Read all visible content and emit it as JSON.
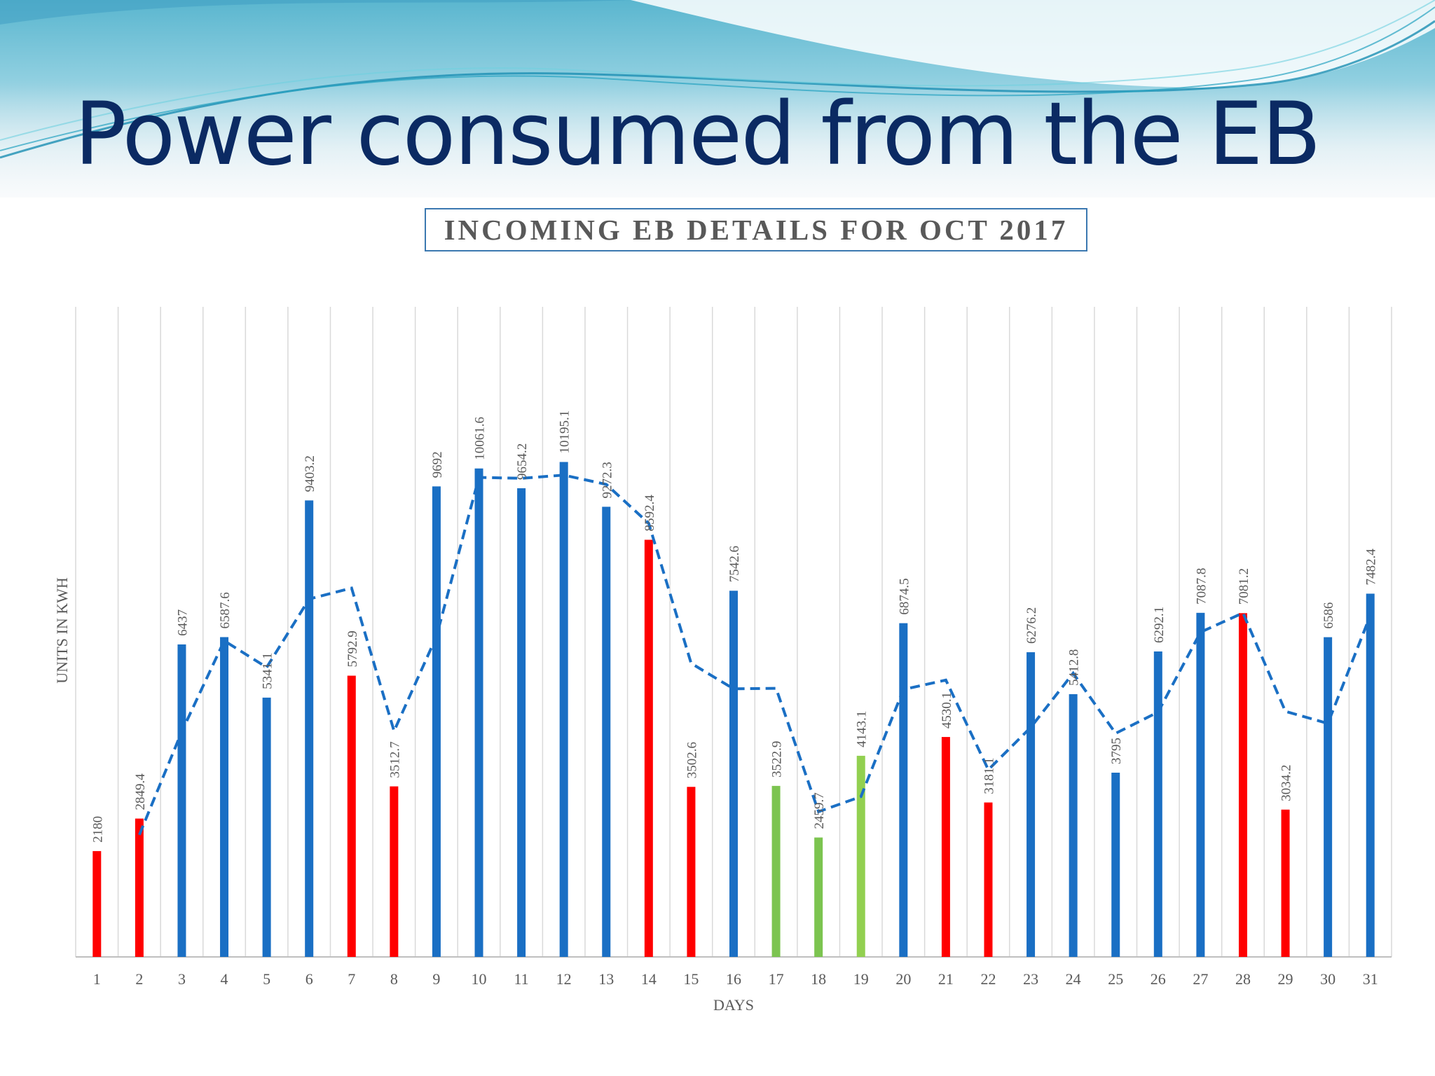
{
  "slide_title": "Power consumed from the EB",
  "chart_data": {
    "type": "bar",
    "title": "INCOMING EB DETAILS FOR OCT 2017",
    "xlabel": "DAYS",
    "ylabel": "UNITS IN KWH",
    "categories": [
      "1",
      "2",
      "3",
      "4",
      "5",
      "6",
      "7",
      "8",
      "9",
      "10",
      "11",
      "12",
      "13",
      "14",
      "15",
      "16",
      "17",
      "18",
      "19",
      "20",
      "21",
      "22",
      "23",
      "24",
      "25",
      "26",
      "27",
      "28",
      "29",
      "30",
      "31"
    ],
    "values": [
      2180,
      2849.4,
      6437,
      6587.6,
      5341.1,
      9403.2,
      5792.9,
      3512.7,
      9692,
      10061.6,
      9654.2,
      10195.1,
      9272.3,
      8592.4,
      3502.6,
      7542.6,
      3522.9,
      2459.7,
      4143.1,
      6874.5,
      4530.1,
      3181.1,
      6276.2,
      5412.8,
      3795,
      6292.1,
      7087.8,
      7081.2,
      3034.2,
      6586,
      7482.4
    ],
    "data_labels": [
      "2180",
      "2849.4",
      "6437",
      "6587.6",
      "5341.1",
      "9403.2",
      "5792.9",
      "3512.7",
      "9692",
      "10061.6",
      "9654.2",
      "10195.1",
      "9272.3",
      "8592.4",
      "3502.6",
      "7542.6",
      "3522.9",
      "2459.7",
      "4143.1",
      "6874.5",
      "4530.1",
      "3181.1",
      "6276.2",
      "5412.8",
      "3795",
      "6292.1",
      "7087.8",
      "7081.2",
      "3034.2",
      "6586",
      "7482.4"
    ],
    "bar_colors": [
      "#ff0000",
      "#ff0000",
      "#1a6fc4",
      "#1a6fc4",
      "#1a6fc4",
      "#1a6fc4",
      "#ff0000",
      "#ff0000",
      "#1a6fc4",
      "#1a6fc4",
      "#1a6fc4",
      "#1a6fc4",
      "#1a6fc4",
      "#ff0000",
      "#ff0000",
      "#1a6fc4",
      "#7cc450",
      "#7cc450",
      "#92d050",
      "#1a6fc4",
      "#ff0000",
      "#ff0000",
      "#1a6fc4",
      "#1a6fc4",
      "#1a6fc4",
      "#1a6fc4",
      "#1a6fc4",
      "#ff0000",
      "#ff0000",
      "#1a6fc4",
      "#1a6fc4"
    ],
    "trendline": {
      "style": "dashed",
      "color": "#1a6fc4",
      "type": "2-period moving average",
      "x": [
        "2",
        "3",
        "4",
        "5",
        "6",
        "7",
        "8",
        "9",
        "10",
        "11",
        "12",
        "13",
        "14",
        "15",
        "16",
        "17",
        "18",
        "19",
        "20",
        "21",
        "22",
        "23",
        "24",
        "25",
        "26",
        "27",
        "28",
        "29",
        "30",
        "31"
      ],
      "values": [
        2514.7,
        4643.2,
        6512.3,
        5964.35,
        7372.15,
        7598.05,
        4652.8,
        6602.35,
        9876.8,
        9857.9,
        9924.65,
        9733.7,
        8932.35,
        6047.5,
        5522.6,
        5532.75,
        2991.3,
        3301.4,
        5508.8,
        5702.3,
        3855.6,
        4728.65,
        5844.5,
        4603.9,
        5043.55,
        6689.95,
        7084.5,
        5057.7,
        4810.1,
        7034.2
      ]
    },
    "ylim": [
      0,
      12000
    ],
    "grid": "vertical",
    "legend": "none"
  }
}
